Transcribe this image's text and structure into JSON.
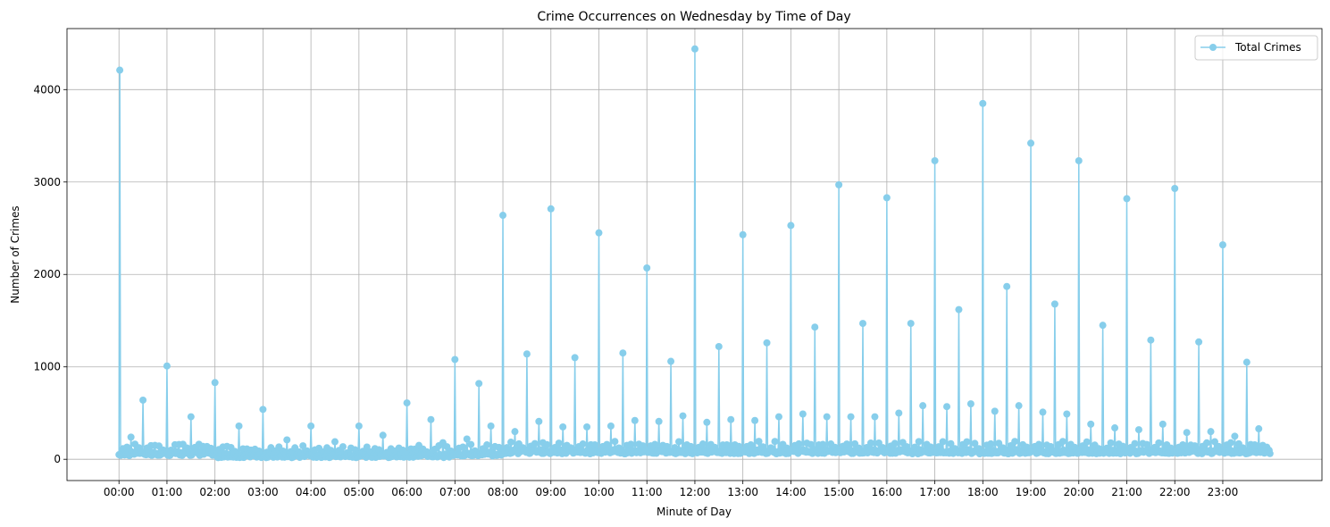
{
  "chart_data": {
    "type": "line",
    "title": "Crime Occurrences on Wednesday by Time of Day",
    "xlabel": "Minute of Day",
    "ylabel": "Number of Crimes",
    "xlim": [
      -65,
      1504
    ],
    "ylim": [
      -230,
      4660
    ],
    "grid": true,
    "legend_position": "top-right",
    "x_ticks": [
      {
        "value": 0,
        "label": "00:00"
      },
      {
        "value": 60,
        "label": "01:00"
      },
      {
        "value": 120,
        "label": "02:00"
      },
      {
        "value": 180,
        "label": "03:00"
      },
      {
        "value": 240,
        "label": "04:00"
      },
      {
        "value": 300,
        "label": "05:00"
      },
      {
        "value": 360,
        "label": "06:00"
      },
      {
        "value": 420,
        "label": "07:00"
      },
      {
        "value": 480,
        "label": "08:00"
      },
      {
        "value": 540,
        "label": "09:00"
      },
      {
        "value": 600,
        "label": "10:00"
      },
      {
        "value": 660,
        "label": "11:00"
      },
      {
        "value": 720,
        "label": "12:00"
      },
      {
        "value": 780,
        "label": "13:00"
      },
      {
        "value": 840,
        "label": "14:00"
      },
      {
        "value": 900,
        "label": "15:00"
      },
      {
        "value": 960,
        "label": "16:00"
      },
      {
        "value": 1020,
        "label": "17:00"
      },
      {
        "value": 1080,
        "label": "18:00"
      },
      {
        "value": 1140,
        "label": "19:00"
      },
      {
        "value": 1200,
        "label": "20:00"
      },
      {
        "value": 1260,
        "label": "21:00"
      },
      {
        "value": 1320,
        "label": "22:00"
      },
      {
        "value": 1380,
        "label": "23:00"
      }
    ],
    "y_ticks": [
      0,
      1000,
      2000,
      3000,
      4000
    ],
    "series": [
      {
        "name": "Total Crimes",
        "color": "#87ceeb",
        "hourly_peaks": [
          4210,
          1010,
          830,
          540,
          360,
          360,
          610,
          1080,
          2640,
          2710,
          2450,
          2070,
          4440,
          2430,
          2530,
          2970,
          2830,
          3230,
          3850,
          3420,
          3230,
          2820,
          2930,
          2320
        ],
        "half_hour_peaks": [
          640,
          460,
          360,
          210,
          190,
          260,
          430,
          820,
          1140,
          1100,
          1150,
          1060,
          1220,
          1260,
          1430,
          1470,
          1470,
          1620,
          1870,
          1680,
          1450,
          1290,
          1270,
          1050
        ],
        "quarter_hour_peaks": [
          [
            240,
            150
          ],
          [
            160,
            140
          ],
          [
            140,
            100
          ],
          [
            90,
            80
          ],
          [
            80,
            70
          ],
          [
            80,
            90
          ],
          [
            150,
            180
          ],
          [
            220,
            360
          ],
          [
            300,
            410
          ],
          [
            350,
            350
          ],
          [
            360,
            420
          ],
          [
            410,
            470
          ],
          [
            400,
            430
          ],
          [
            420,
            460
          ],
          [
            490,
            460
          ],
          [
            460,
            460
          ],
          [
            500,
            580
          ],
          [
            570,
            600
          ],
          [
            520,
            580
          ],
          [
            510,
            490
          ],
          [
            380,
            340
          ],
          [
            320,
            380
          ],
          [
            290,
            300
          ],
          [
            250,
            330
          ]
        ]
      }
    ]
  }
}
